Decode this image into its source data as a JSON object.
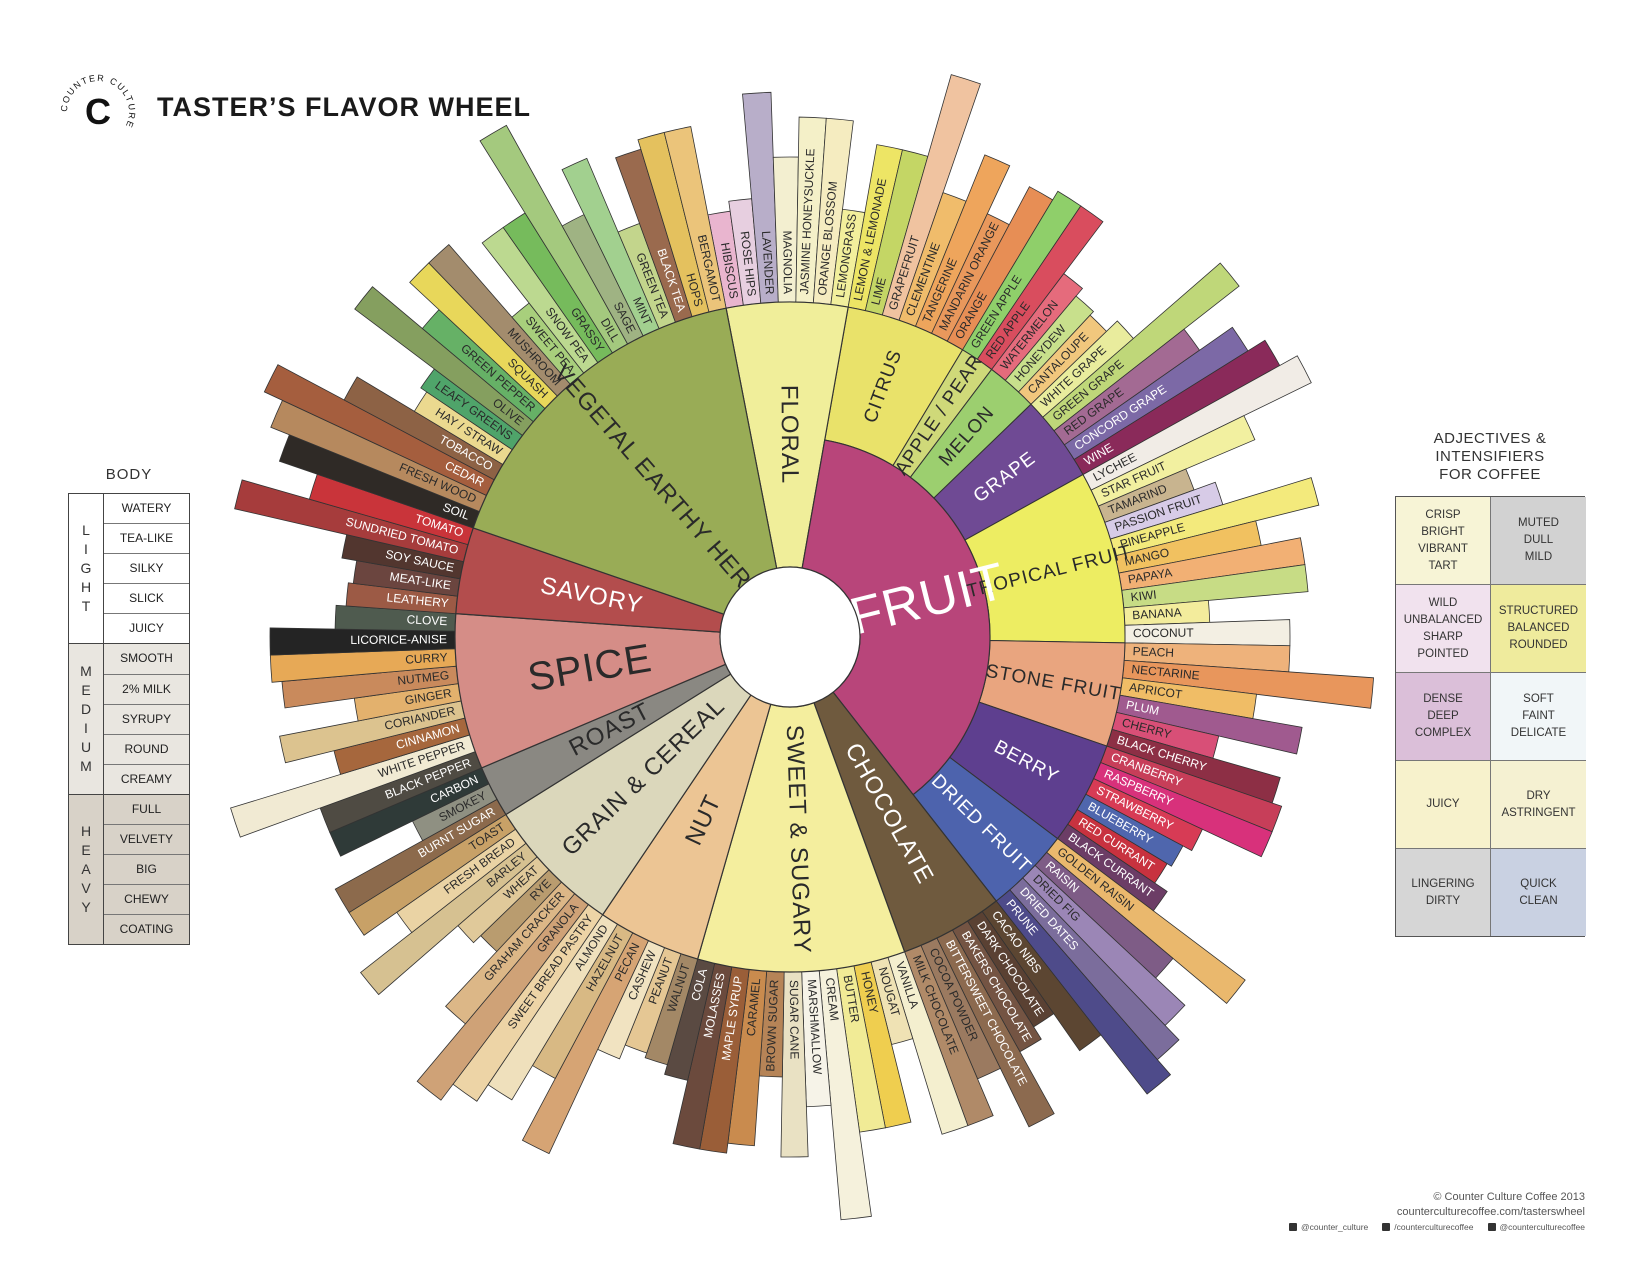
{
  "header": {
    "title": "TASTER’S FLAVOR WHEEL",
    "logo_ring": "COUNTER CULTURE",
    "logo_letter": "C"
  },
  "wheel": {
    "categories": [
      {
        "name": "FLORAL",
        "color": "#f0ee9a",
        "sub": [
          {
            "name": "FLORAL",
            "color": "#f0ee9a",
            "items": [
              {
                "n": "HIBISCUS",
                "c": "#e9b5cf"
              },
              {
                "n": "ROSE HIPS",
                "c": "#e7cfe0"
              },
              {
                "n": "LAVENDER",
                "c": "#b8aec9"
              },
              {
                "n": "MAGNOLIA",
                "c": "#f3efd0"
              },
              {
                "n": "JASMINE HONEYSUCKLE",
                "c": "#f4f0c8"
              },
              {
                "n": "ORANGE BLOSSOM",
                "c": "#f5ecc0"
              },
              {
                "n": "LEMONGRASS",
                "c": "#f2ef9c"
              }
            ]
          }
        ]
      },
      {
        "name": "FRUIT",
        "color": "#b8457a",
        "sub": [
          {
            "name": "CITRUS",
            "color": "#e9e26a",
            "items": [
              {
                "n": "LEMON & LEMONADE",
                "c": "#ede565"
              },
              {
                "n": "LIME",
                "c": "#c4d665"
              },
              {
                "n": "GRAPEFRUIT",
                "c": "#f0c3a0"
              },
              {
                "n": "CLEMENTINE",
                "c": "#f0bc6b"
              },
              {
                "n": "TANGERINE",
                "c": "#eea55c"
              },
              {
                "n": "MANDARIN ORANGE",
                "c": "#e9985c"
              },
              {
                "n": "ORANGE",
                "c": "#e78e55"
              }
            ]
          },
          {
            "name": "APPLE / PEAR",
            "color": "#cfd979",
            "items": [
              {
                "n": "GREEN APPLE",
                "c": "#8fcf6a"
              },
              {
                "n": "RED APPLE",
                "c": "#d94d5e"
              }
            ]
          },
          {
            "name": "MELON",
            "color": "#9ccf6f",
            "items": [
              {
                "n": "WATERMELON",
                "c": "#e56b7c"
              },
              {
                "n": "HONEYDEW",
                "c": "#c8e08c"
              },
              {
                "n": "CANTALOUPE",
                "c": "#f1c77d"
              }
            ]
          },
          {
            "name": "GRAPE",
            "color": "#6f4a94",
            "items": [
              {
                "n": "WHITE GRAPE",
                "c": "#e9ec9d"
              },
              {
                "n": "GREEN GRAPE",
                "c": "#bfd779"
              },
              {
                "n": "RED GRAPE",
                "c": "#a36a93"
              },
              {
                "n": "CONCORD GRAPE",
                "c": "#7c69a6"
              },
              {
                "n": "WINE",
                "c": "#8a2a5a"
              }
            ]
          },
          {
            "name": "TROPICAL FRUIT",
            "color": "#eded62",
            "items": [
              {
                "n": "LYCHEE",
                "c": "#f1ece6"
              },
              {
                "n": "STAR FRUIT",
                "c": "#f2f0a0"
              },
              {
                "n": "TAMARIND",
                "c": "#c8b48f"
              },
              {
                "n": "PASSION FRUIT",
                "c": "#d7cbe7"
              },
              {
                "n": "PINEAPPLE",
                "c": "#f3ea7c"
              },
              {
                "n": "MANGO",
                "c": "#f1c160"
              },
              {
                "n": "PAPAYA",
                "c": "#f2b074"
              },
              {
                "n": "KIWI",
                "c": "#c7dc85"
              },
              {
                "n": "BANANA",
                "c": "#f3ec9c"
              },
              {
                "n": "COCONUT",
                "c": "#f3efe3"
              }
            ]
          },
          {
            "name": "STONE FRUIT",
            "color": "#e9a57f",
            "items": [
              {
                "n": "PEACH",
                "c": "#eeb27b"
              },
              {
                "n": "NECTARINE",
                "c": "#e8965c"
              },
              {
                "n": "APRICOT",
                "c": "#f0bd66"
              },
              {
                "n": "PLUM",
                "c": "#a05a8f"
              },
              {
                "n": "CHERRY",
                "c": "#d84f77"
              },
              {
                "n": "BLACK CHERRY",
                "c": "#8d2f45"
              }
            ]
          },
          {
            "name": "BERRY",
            "color": "#5e3f8f",
            "items": [
              {
                "n": "CRANBERRY",
                "c": "#c73e59"
              },
              {
                "n": "RASPBERRY",
                "c": "#d8317b"
              },
              {
                "n": "STRAWBERRY",
                "c": "#d73b55"
              },
              {
                "n": "BLUEBERRY",
                "c": "#4f66ad"
              },
              {
                "n": "RED CURRANT",
                "c": "#c8323f"
              },
              {
                "n": "BLACK CURRANT",
                "c": "#6c3d66"
              }
            ]
          },
          {
            "name": "DRIED FRUIT",
            "color": "#4d63ad",
            "items": [
              {
                "n": "GOLDEN RAISIN",
                "c": "#eab86d"
              },
              {
                "n": "RAISIN",
                "c": "#7e5c86"
              },
              {
                "n": "DRIED FIG",
                "c": "#9b86b6"
              },
              {
                "n": "DRIED DATES",
                "c": "#7b6d9c"
              },
              {
                "n": "PRUNE",
                "c": "#4e4b8a"
              }
            ]
          }
        ]
      },
      {
        "name": "CHOCOLATE",
        "color": "#6f5a3e",
        "sub": [
          {
            "name": "CHOCOLATE",
            "color": "#6f5a3e",
            "items": [
              {
                "n": "CACAO NIBS",
                "c": "#5c4632"
              },
              {
                "n": "DARK CHOCOLATE",
                "c": "#5a4133"
              },
              {
                "n": "BAKERS CHOCOLATE",
                "c": "#745443"
              },
              {
                "n": "BITTERSWEET CHOCOLATE",
                "c": "#8c6a4f"
              },
              {
                "n": "COCOA POWDER",
                "c": "#9b7a60"
              },
              {
                "n": "MILK CHOCOLATE",
                "c": "#b08a68"
              }
            ]
          }
        ]
      },
      {
        "name": "SWEET & SUGARY",
        "color": "#f4ee9e",
        "sub": [
          {
            "name": "SWEET & SUGARY",
            "color": "#f4ee9e",
            "items": [
              {
                "n": "VANILLA",
                "c": "#f4efcf"
              },
              {
                "n": "NOUGAT",
                "c": "#efe2b4"
              },
              {
                "n": "HONEY",
                "c": "#efce4f"
              },
              {
                "n": "BUTTER",
                "c": "#f1eb96"
              },
              {
                "n": "CREAM",
                "c": "#f5f1dc"
              },
              {
                "n": "MARSHMALLOW",
                "c": "#f6f3e8"
              },
              {
                "n": "SUGAR CANE",
                "c": "#e9e1c3"
              },
              {
                "n": "BROWN SUGAR",
                "c": "#b68457"
              },
              {
                "n": "CARAMEL",
                "c": "#c98b4e"
              },
              {
                "n": "MAPLE SYRUP",
                "c": "#9a5e38"
              },
              {
                "n": "MOLASSES",
                "c": "#6b4a3d"
              },
              {
                "n": "COLA",
                "c": "#5a4a42"
              }
            ]
          }
        ]
      },
      {
        "name": "NUT",
        "color": "#ecc594",
        "sub": [
          {
            "name": "NUT",
            "color": "#ecc594",
            "items": [
              {
                "n": "WALNUT",
                "c": "#a38866"
              },
              {
                "n": "PEANUT",
                "c": "#e5c794"
              },
              {
                "n": "CASHEW",
                "c": "#f1e3c1"
              },
              {
                "n": "PECAN",
                "c": "#d6a474"
              },
              {
                "n": "HAZELNUT",
                "c": "#d8b984"
              },
              {
                "n": "ALMOND",
                "c": "#efe0bc"
              }
            ]
          }
        ]
      },
      {
        "name": "GRAIN & CEREAL",
        "color": "#dbd7bb",
        "sub": [
          {
            "name": "GRAIN & CEREAL",
            "color": "#dbd7bb",
            "items": [
              {
                "n": "SWEET BREAD PASTRY",
                "c": "#edd4a6"
              },
              {
                "n": "GRANOLA",
                "c": "#cfa277"
              },
              {
                "n": "GRAHAM CRACKER",
                "c": "#dcb787"
              },
              {
                "n": "RYE",
                "c": "#b99c6f"
              },
              {
                "n": "WHEAT",
                "c": "#e0c99a"
              },
              {
                "n": "BARLEY",
                "c": "#d6c191"
              },
              {
                "n": "FRESH BREAD",
                "c": "#ead3a4"
              },
              {
                "n": "TOAST",
                "c": "#c8a167"
              }
            ]
          }
        ]
      },
      {
        "name": "ROAST",
        "color": "#8a8882",
        "sub": [
          {
            "name": "ROAST",
            "color": "#8a8882",
            "items": [
              {
                "n": "BURNT SUGAR",
                "c": "#8c6a4c"
              },
              {
                "n": "SMOKEY",
                "c": "#8f9082"
              },
              {
                "n": "CARBON",
                "c": "#2f3a38"
              }
            ]
          }
        ]
      },
      {
        "name": "SPICE",
        "color": "#d58d87",
        "sub": [
          {
            "name": "SPICE",
            "color": "#d58d87",
            "items": [
              {
                "n": "BLACK PEPPER",
                "c": "#4f4b43"
              },
              {
                "n": "WHITE PEPPER",
                "c": "#f1ead3"
              },
              {
                "n": "CINNAMON",
                "c": "#a6673d"
              },
              {
                "n": "CORIANDER",
                "c": "#dcc38f"
              },
              {
                "n": "GINGER",
                "c": "#e3b16d"
              },
              {
                "n": "NUTMEG",
                "c": "#c98a5c"
              },
              {
                "n": "CURRY",
                "c": "#e7a956"
              },
              {
                "n": "LICORICE-ANISE",
                "c": "#242424"
              },
              {
                "n": "CLOVE",
                "c": "#4f5b4f"
              }
            ]
          }
        ]
      },
      {
        "name": "SAVORY",
        "color": "#b34d4d",
        "sub": [
          {
            "name": "SAVORY",
            "color": "#b34d4d",
            "items": [
              {
                "n": "LEATHERY",
                "c": "#9c5a45"
              },
              {
                "n": "MEAT-LIKE",
                "c": "#6b453f"
              },
              {
                "n": "SOY SAUCE",
                "c": "#52362f"
              },
              {
                "n": "SUNDRIED TOMATO",
                "c": "#a63c3c"
              },
              {
                "n": "TOMATO",
                "c": "#c9343a"
              }
            ]
          }
        ]
      },
      {
        "name": "VEGETAL EARTHY HERB",
        "color": "#99ac56",
        "sub": [
          {
            "name": "VEGETAL EARTHY HERB",
            "color": "#99ac56",
            "items": [
              {
                "n": "SOIL",
                "c": "#2f2a26"
              },
              {
                "n": "FRESH WOOD",
                "c": "#b6895e"
              },
              {
                "n": "CEDAR",
                "c": "#a55e3e"
              },
              {
                "n": "TOBACCO",
                "c": "#8d6245"
              },
              {
                "n": "HAY / STRAW",
                "c": "#ebd98f"
              },
              {
                "n": "LEAFY GREENS",
                "c": "#4fa46a"
              },
              {
                "n": "OLIVE",
                "c": "#859f5f"
              },
              {
                "n": "GREEN PEPPER",
                "c": "#66b166"
              },
              {
                "n": "SQUASH",
                "c": "#e8d75a"
              },
              {
                "n": "MUSHROOM",
                "c": "#a38c6d"
              },
              {
                "n": "SWEET PEA",
                "c": "#a8cf7c"
              },
              {
                "n": "SNOW PEA",
                "c": "#bcd990"
              },
              {
                "n": "GRASSY",
                "c": "#76bb5c"
              },
              {
                "n": "DILL",
                "c": "#a4c97e"
              },
              {
                "n": "SAGE",
                "c": "#9fb383"
              },
              {
                "n": "MINT",
                "c": "#a2d08f"
              },
              {
                "n": "GREEN TEA",
                "c": "#c3d58c"
              },
              {
                "n": "BLACK TEA",
                "c": "#9a6a4e"
              },
              {
                "n": "HOPS",
                "c": "#e4c15e"
              },
              {
                "n": "BERGAMOT",
                "c": "#ebc47a"
              }
            ]
          }
        ]
      }
    ]
  },
  "body": {
    "title": "BODY",
    "groups": [
      {
        "label": "LIGHT",
        "color": "#ffffff",
        "items": [
          "WATERY",
          "TEA-LIKE",
          "SILKY",
          "SLICK",
          "JUICY"
        ]
      },
      {
        "label": "MEDIUM",
        "color": "#e9e6e0",
        "items": [
          "SMOOTH",
          "2% MILK",
          "SYRUPY",
          "ROUND",
          "CREAMY"
        ]
      },
      {
        "label": "HEAVY",
        "color": "#d8d2c8",
        "items": [
          "FULL",
          "VELVETY",
          "BIG",
          "CHEWY",
          "COATING"
        ]
      }
    ]
  },
  "adjectives": {
    "title": "ADJECTIVES &\nINTENSIFIERS\nFOR COFFEE",
    "cells": [
      {
        "text": "CRISP\nBRIGHT\nVIBRANT\nTART",
        "color": "#f7f4d6"
      },
      {
        "text": "MUTED\nDULL\nMILD",
        "color": "#d2d2d2"
      },
      {
        "text": "WILD\nUNBALANCED\nSHARP\nPOINTED",
        "color": "#f1e2ee"
      },
      {
        "text": "STRUCTURED\nBALANCED\nROUNDED",
        "color": "#efeb9d"
      },
      {
        "text": "DENSE\nDEEP\nCOMPLEX",
        "color": "#dbbfd9"
      },
      {
        "text": "SOFT\nFAINT\nDELICATE",
        "color": "#f1f6f8"
      },
      {
        "text": "JUICY",
        "color": "#f7f2cc"
      },
      {
        "text": "DRY\nASTRINGENT",
        "color": "#f5f1d2"
      },
      {
        "text": "LINGERING\nDIRTY",
        "color": "#d6d6d6"
      },
      {
        "text": "QUICK\nCLEAN",
        "color": "#c9d1e2"
      }
    ]
  },
  "footer": {
    "copyright": "© Counter Culture Coffee 2013",
    "url": "counterculturecoffee.com/tasterswheel",
    "twitter": "@counter_culture",
    "facebook": "/counterculturecoffee",
    "instagram": "@counterculturecoffee"
  }
}
